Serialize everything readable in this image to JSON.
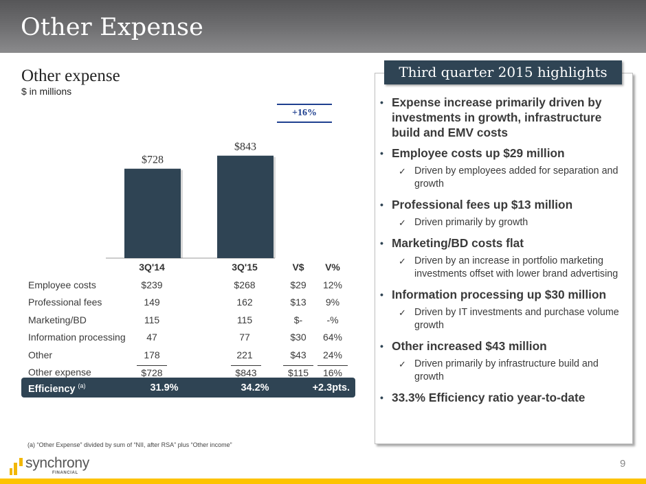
{
  "header": {
    "title": "Other Expense"
  },
  "section": {
    "title": "Other expense",
    "subtitle": "$ in millions"
  },
  "variance_badge": "+16%",
  "chart_data": {
    "type": "bar",
    "title": "Other expense",
    "ylabel": "$ in millions",
    "categories": [
      "3Q'14",
      "3Q'15"
    ],
    "values": [
      728,
      843
    ],
    "data_labels": [
      "$728",
      "$843"
    ],
    "ylim": [
      0,
      1000
    ],
    "grid": false,
    "bar_color": "#2f4454",
    "annotation": "+16%"
  },
  "table": {
    "headers": [
      "",
      "3Q'14",
      "3Q'15",
      "V$",
      "V%"
    ],
    "rows": [
      {
        "label": "Employee costs",
        "a": "$239",
        "b": "$268",
        "v": "$29",
        "p": "12%"
      },
      {
        "label": "Professional fees",
        "a": "149",
        "b": "162",
        "v": "$13",
        "p": "9%"
      },
      {
        "label": "Marketing/BD",
        "a": "115",
        "b": "115",
        "v": "$-",
        "p": "-%"
      },
      {
        "label": "Information processing",
        "a": "47",
        "b": "77",
        "v": "$30",
        "p": "64%"
      },
      {
        "label": "Other",
        "a": "178",
        "b": "221",
        "v": "$43",
        "p": "24%"
      }
    ],
    "total": {
      "label": "Other expense",
      "a": "$728",
      "b": "$843",
      "v": "$115",
      "p": "16%"
    },
    "efficiency": {
      "label": "Efficiency",
      "sup": "(a)",
      "a": "31.9%",
      "b": "34.2%",
      "change": "+2.3pts."
    }
  },
  "footnote": "(a) “Other Expense” divided by sum of “NII, after RSA” plus “Other income”",
  "highlights": {
    "title": "Third quarter 2015 highlights",
    "items": [
      {
        "text": "Expense increase primarily driven by investments in growth, infrastructure build and EMV costs"
      },
      {
        "text": "Employee costs up $29 million",
        "sub": "Driven by employees added for separation and growth"
      },
      {
        "text": "Professional fees up $13 million",
        "sub": "Driven primarily by growth"
      },
      {
        "text": "Marketing/BD costs flat",
        "sub": "Driven by an increase in portfolio marketing investments offset with lower brand advertising"
      },
      {
        "text": "Information processing up $30 million",
        "sub": "Driven by IT investments and purchase volume growth"
      },
      {
        "text": "Other increased $43 million",
        "sub": "Driven primarily by infrastructure build and growth"
      },
      {
        "text": "33.3% Efficiency ratio year-to-date"
      }
    ]
  },
  "page_number": "9",
  "logo": {
    "word": "synchrony",
    "sub": "FINANCIAL"
  },
  "colors": {
    "accent_dark": "#2f4454",
    "variance_blue": "#1e3f8f",
    "brand_gold": "#fdc300"
  }
}
